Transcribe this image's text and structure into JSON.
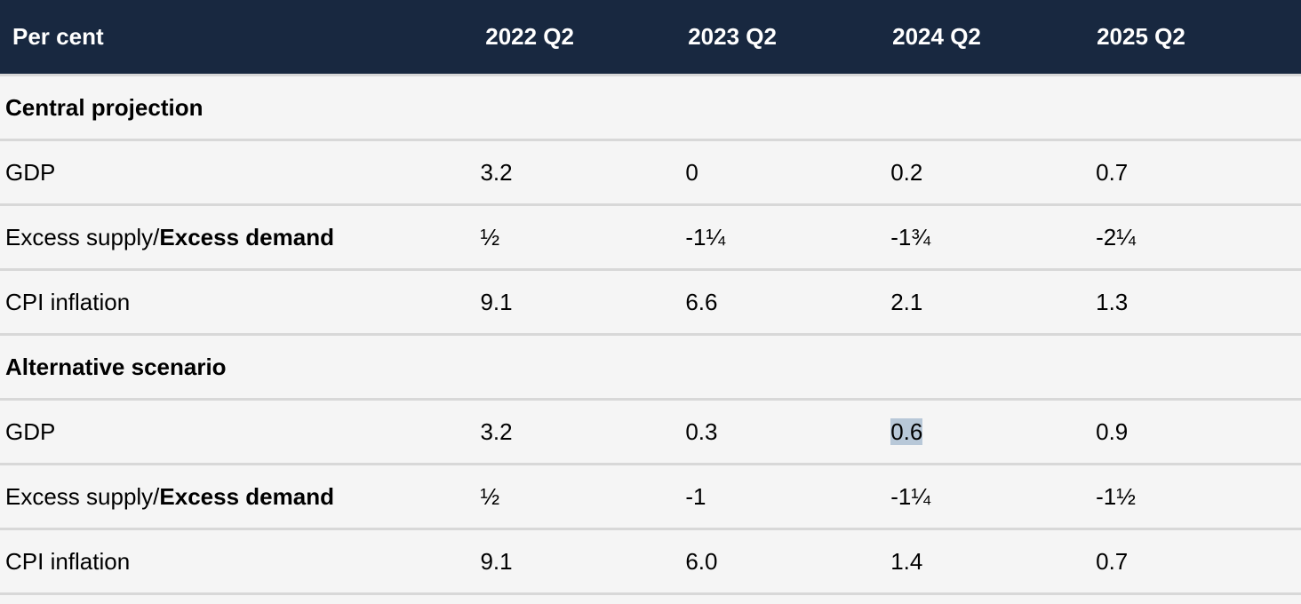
{
  "header": {
    "label": "Per cent",
    "columns": [
      "2022 Q2",
      "2023 Q2",
      "2024 Q2",
      "2025 Q2"
    ]
  },
  "sections": [
    {
      "title": "Central projection",
      "rows": [
        {
          "label": "GDP",
          "values": [
            "3.2",
            "0",
            "0.2",
            "0.7"
          ]
        },
        {
          "label_plain": "Excess supply/",
          "label_bold": "Excess demand",
          "values": [
            "½",
            "-1¼",
            "-1¾",
            "-2¼"
          ]
        },
        {
          "label": "CPI inflation",
          "values": [
            "9.1",
            "6.6",
            "2.1",
            "1.3"
          ]
        }
      ]
    },
    {
      "title": "Alternative scenario",
      "rows": [
        {
          "label": "GDP",
          "values": [
            "3.2",
            "0.3",
            "0.6",
            "0.9"
          ]
        },
        {
          "label_plain": "Excess supply/",
          "label_bold": "Excess demand",
          "values": [
            "½",
            "-1",
            "-1¼",
            "-1½"
          ]
        },
        {
          "label": "CPI inflation",
          "values": [
            "9.1",
            "6.0",
            "1.4",
            "0.7"
          ]
        }
      ]
    }
  ],
  "colors": {
    "header_bg": "#182840",
    "row_bg": "#f5f5f5",
    "divider": "#d8d8d8",
    "selection_highlight": "#b8c8d8"
  }
}
